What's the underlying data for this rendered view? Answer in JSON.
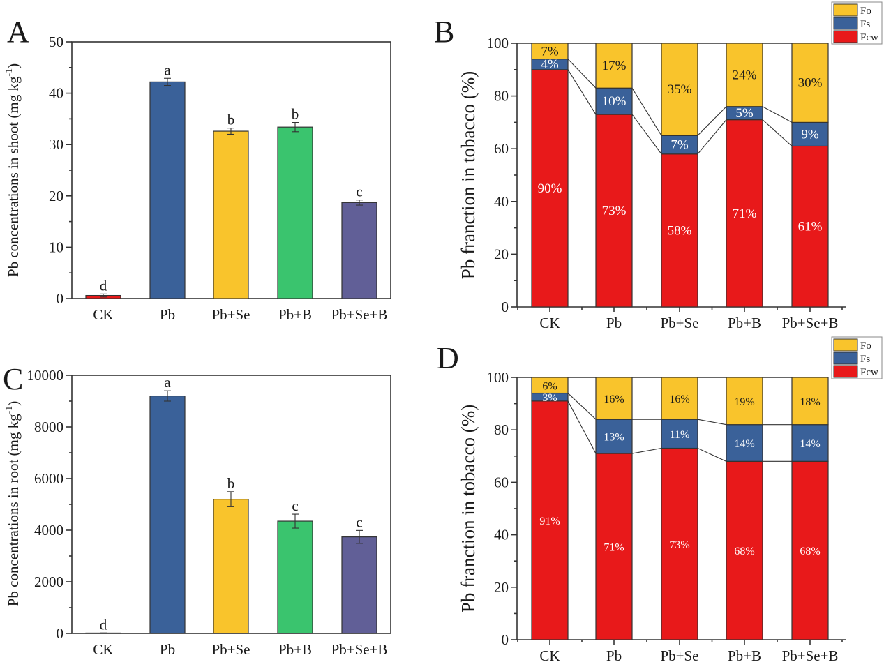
{
  "figure": {
    "panels": [
      "A",
      "B",
      "C",
      "D"
    ]
  },
  "chart_data": [
    {
      "id": "A",
      "panel_label": "A",
      "type": "bar",
      "title": "",
      "xlabel": "",
      "ylabel": "Pb concentrations in shoot (mg kg⁻¹)",
      "ylabel_parts": {
        "main": "Pb concentrations in shoot (mg kg",
        "sup": "-1",
        "end": ")"
      },
      "ylim": [
        0,
        50
      ],
      "yticks": [
        0,
        10,
        20,
        30,
        40,
        50
      ],
      "yminor": [
        5,
        15,
        25,
        35,
        45
      ],
      "grid": false,
      "categories": [
        "CK",
        "Pb",
        "Pb+Se",
        "Pb+B",
        "Pb+Se+B"
      ],
      "values": [
        0.6,
        42.2,
        32.6,
        33.4,
        18.7
      ],
      "errors": [
        0.3,
        0.7,
        0.6,
        0.9,
        0.5
      ],
      "significance": [
        "d",
        "a",
        "b",
        "b",
        "c"
      ],
      "colors": [
        "#e8191a",
        "#3a6199",
        "#f9c42c",
        "#3ac46e",
        "#615f97"
      ]
    },
    {
      "id": "B",
      "panel_label": "B",
      "type": "bar",
      "stacked": true,
      "title": "",
      "xlabel": "",
      "ylabel": "Pb franction in tobacco (%)",
      "ylim": [
        0,
        100
      ],
      "yticks": [
        0,
        20,
        40,
        60,
        80,
        100
      ],
      "yminor": [
        10,
        30,
        50,
        70,
        90
      ],
      "grid": false,
      "categories": [
        "CK",
        "Pb",
        "Pb+Se",
        "Pb+B",
        "Pb+Se+B"
      ],
      "series": [
        {
          "name": "Fcw",
          "color": "#e8191a",
          "values": [
            90,
            73,
            58,
            71,
            61
          ],
          "labels": [
            "90%",
            "73%",
            "58%",
            "71%",
            "61%"
          ]
        },
        {
          "name": "Fs",
          "color": "#3a6199",
          "values": [
            4,
            10,
            7,
            5,
            9
          ],
          "labels": [
            "4%",
            "10%",
            "7%",
            "5%",
            "9%"
          ]
        },
        {
          "name": "Fo",
          "color": "#f9c42c",
          "values": [
            7,
            17,
            35,
            24,
            30
          ],
          "labels": [
            "7%",
            "17%",
            "35%",
            "24%",
            "30%"
          ]
        }
      ],
      "legend": {
        "placement": "top-right",
        "entries": [
          "Fo",
          "Fs",
          "Fcw"
        ]
      }
    },
    {
      "id": "C",
      "panel_label": "C",
      "type": "bar",
      "title": "",
      "xlabel": "",
      "ylabel": "Pb concentrations in root (mg kg⁻¹)",
      "ylabel_parts": {
        "main": "Pb concentrations in root (mg kg",
        "sup": "-1",
        "end": ")"
      },
      "ylim": [
        0,
        10000
      ],
      "yticks": [
        0,
        2000,
        4000,
        6000,
        8000,
        10000
      ],
      "yminor": [
        1000,
        3000,
        5000,
        7000,
        9000
      ],
      "grid": false,
      "categories": [
        "CK",
        "Pb",
        "Pb+Se",
        "Pb+B",
        "Pb+Se+B"
      ],
      "values": [
        15,
        9200,
        5200,
        4350,
        3740
      ],
      "errors": [
        5,
        200,
        290,
        270,
        250
      ],
      "significance": [
        "d",
        "a",
        "b",
        "c",
        "c"
      ],
      "colors": [
        "#e8191a",
        "#3a6199",
        "#f9c42c",
        "#3ac46e",
        "#615f97"
      ]
    },
    {
      "id": "D",
      "panel_label": "D",
      "type": "bar",
      "stacked": true,
      "title": "",
      "xlabel": "",
      "ylabel": "Pb franction in tobacco (%)",
      "ylim": [
        0,
        100
      ],
      "yticks": [
        0,
        20,
        40,
        60,
        80,
        100
      ],
      "yminor": [
        10,
        30,
        50,
        70,
        90
      ],
      "grid": false,
      "categories": [
        "CK",
        "Pb",
        "Pb+Se",
        "Pb+B",
        "Pb+Se+B"
      ],
      "series": [
        {
          "name": "Fcw",
          "color": "#e8191a",
          "values": [
            91,
            71,
            73,
            68,
            68
          ],
          "labels": [
            "91%",
            "71%",
            "73%",
            "68%",
            "68%"
          ]
        },
        {
          "name": "Fs",
          "color": "#3a6199",
          "values": [
            3,
            13,
            11,
            14,
            14
          ],
          "labels": [
            "3%",
            "13%",
            "11%",
            "14%",
            "14%"
          ]
        },
        {
          "name": "Fo",
          "color": "#f9c42c",
          "values": [
            6,
            16,
            16,
            19,
            18
          ],
          "labels": [
            "6%",
            "16%",
            "16%",
            "19%",
            "18%"
          ]
        }
      ],
      "legend": {
        "placement": "top-right",
        "entries": [
          "Fo",
          "Fs",
          "Fcw"
        ]
      }
    }
  ]
}
